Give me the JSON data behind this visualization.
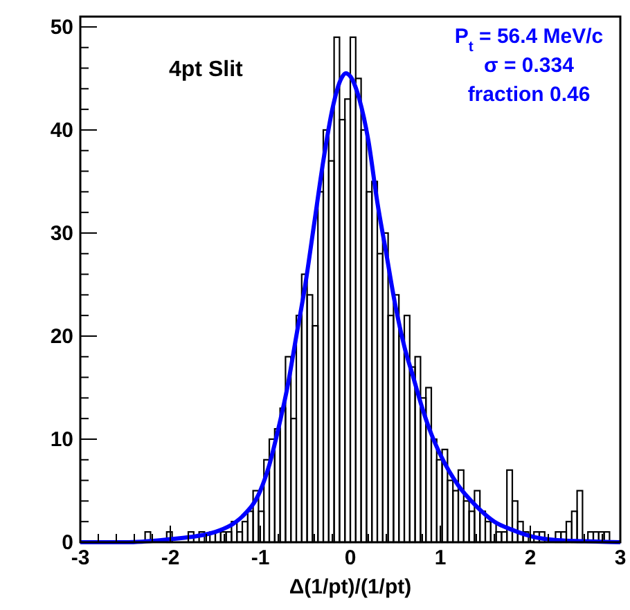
{
  "chart_data": {
    "type": "histogram",
    "xlabel": "Δ(1/pt)/(1/pt)",
    "annotations": [
      "4pt Slit",
      "P$_{t}$ = 56.4 MeV/c",
      "σ = 0.334",
      "fraction 0.46"
    ],
    "bins": [
      -3,
      -2.94,
      -2.88,
      -2.82,
      -2.76,
      -2.7,
      -2.64,
      -2.58,
      -2.52,
      -2.46,
      -2.4,
      -2.34,
      -2.28,
      -2.22,
      -2.16,
      -2.1,
      -2.04,
      -1.98,
      -1.92,
      -1.86,
      -1.8,
      -1.74,
      -1.68,
      -1.62,
      -1.56,
      -1.5,
      -1.44,
      -1.38,
      -1.32,
      -1.26,
      -1.2,
      -1.14,
      -1.08,
      -1.02,
      -0.96,
      -0.9,
      -0.84,
      -0.78,
      -0.72,
      -0.66,
      -0.6,
      -0.54,
      -0.48,
      -0.42,
      -0.36,
      -0.3,
      -0.24,
      -0.18,
      -0.12,
      -0.06,
      0,
      0.06,
      0.12,
      0.18,
      0.24,
      0.3,
      0.36,
      0.42,
      0.48,
      0.54,
      0.6,
      0.66,
      0.72,
      0.78,
      0.84,
      0.9,
      0.96,
      1.02,
      1.08,
      1.14,
      1.2,
      1.26,
      1.32,
      1.38,
      1.44,
      1.5,
      1.56,
      1.62,
      1.68,
      1.74,
      1.8,
      1.86,
      1.92,
      1.98,
      2.04,
      2.1,
      2.16,
      2.22,
      2.28,
      2.34,
      2.4,
      2.46,
      2.52,
      2.58,
      2.64,
      2.7,
      2.76,
      2.82,
      2.88,
      2.94,
      3
    ],
    "values": [
      0,
      0,
      0,
      0,
      0,
      0,
      0,
      0,
      0,
      0,
      0,
      0,
      1,
      0,
      0,
      0,
      1,
      0,
      0,
      0,
      1,
      0,
      1,
      0,
      1,
      1,
      1,
      1,
      2,
      1,
      2,
      3,
      5,
      3,
      8,
      10,
      11,
      13,
      18,
      12,
      22,
      26,
      24,
      21,
      34,
      40,
      37,
      49,
      41,
      43,
      49,
      45,
      40,
      34,
      35,
      28,
      30,
      22,
      24,
      20,
      22,
      17,
      18,
      14,
      15,
      10,
      8,
      9,
      6,
      5,
      7,
      4,
      3,
      5,
      3,
      2,
      2,
      1,
      1,
      7,
      4,
      2,
      1,
      0,
      1,
      1,
      0,
      0,
      1,
      1,
      2,
      3,
      5,
      0,
      1,
      1,
      1,
      1,
      0,
      0
    ],
    "color": "#000000",
    "series": [
      {
        "type": "line",
        "color": "#0000ff",
        "x": [
          -3,
          -2.5,
          -2,
          -1.7,
          -1.5,
          -1.3,
          -1.2,
          -1,
          -0.9,
          -0.8,
          -0.7,
          -0.6,
          -0.5,
          -0.4,
          -0.3,
          -0.2,
          -0.1,
          -0.05,
          0,
          0.1,
          0.2,
          0.3,
          0.4,
          0.5,
          0.6,
          0.7,
          0.8,
          0.9,
          1,
          1.2,
          1.4,
          1.6,
          1.8,
          2,
          2.3,
          2.6,
          3
        ],
        "values": [
          0,
          0,
          0.3,
          0.6,
          1,
          1.8,
          2.5,
          5,
          7.5,
          11,
          15,
          20,
          25,
          31,
          37,
          42,
          45,
          45.5,
          45.2,
          43,
          39,
          33,
          28,
          23,
          19,
          16,
          13,
          10.5,
          8.5,
          5.5,
          3.5,
          2,
          1.2,
          0.6,
          0.2,
          0.1,
          0
        ]
      }
    ],
    "xlim": [
      -3,
      3
    ],
    "xticks": [
      -3,
      -2,
      -1,
      0,
      1,
      2,
      3
    ],
    "ylim": [
      0,
      51
    ],
    "yticks": [
      0,
      10,
      20,
      30,
      40,
      50
    ],
    "grid": false
  }
}
